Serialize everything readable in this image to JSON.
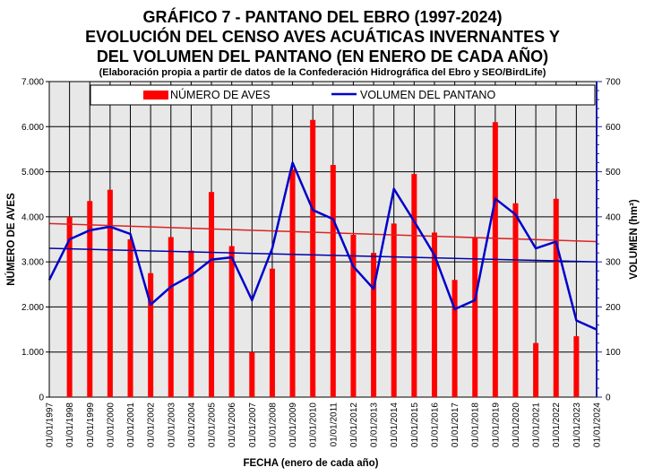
{
  "chart_data": {
    "type": "bar",
    "title_lines": [
      "GRÁFICO 7 - PANTANO DEL EBRO (1997-2024)",
      "EVOLUCIÓN DEL CENSO AVES ACUÁTICAS INVERNANTES Y",
      "DEL VOLUMEN DEL PANTANO (EN ENERO DE CADA AÑO)"
    ],
    "subtitle": "(Elaboración propia a partir de datos de la Confederación Hidrográfica del Ebro y SEO/BirdLife)",
    "xlabel": "FECHA (enero de cada año)",
    "ylabel": "NÚMERO DE AVES",
    "y2label": "VOLUMEN (hm³)",
    "ylim": [
      0,
      7000
    ],
    "y2lim": [
      0,
      700
    ],
    "y_ticks": [
      "0",
      "1.000",
      "2.000",
      "3.000",
      "4.000",
      "5.000",
      "6.000",
      "7.000"
    ],
    "y2_ticks": [
      "0",
      "100",
      "200",
      "300",
      "400",
      "500",
      "600",
      "700"
    ],
    "grid": true,
    "legend_position": "top",
    "categories": [
      "01/01/1997",
      "01/01/1998",
      "01/01/1999",
      "01/01/2000",
      "01/01/2001",
      "01/01/2002",
      "01/01/2003",
      "01/01/2004",
      "01/01/2005",
      "01/01/2006",
      "01/01/2007",
      "01/01/2008",
      "01/01/2009",
      "01/01/2010",
      "01/01/2011",
      "01/01/2012",
      "01/01/2013",
      "01/01/2014",
      "01/01/2015",
      "01/01/2016",
      "01/01/2017",
      "01/01/2018",
      "01/01/2019",
      "01/01/2020",
      "01/01/2021",
      "01/01/2022",
      "01/01/2023",
      "01/01/2024"
    ],
    "series": [
      {
        "name": "NÚMERO DE AVES",
        "type": "bar",
        "axis": "left",
        "color": "#ff0000",
        "values": [
          null,
          4000,
          4350,
          4600,
          3500,
          2750,
          3550,
          3250,
          4550,
          3350,
          1000,
          2850,
          5050,
          6150,
          5150,
          3600,
          3200,
          3850,
          4950,
          3650,
          2600,
          3550,
          6100,
          4300,
          1200,
          4400,
          1350,
          null
        ]
      },
      {
        "name": "VOLUMEN DEL PANTANO",
        "type": "line",
        "axis": "right",
        "color": "#0000cc",
        "values": [
          260,
          350,
          370,
          378,
          362,
          205,
          245,
          270,
          305,
          310,
          215,
          330,
          520,
          415,
          395,
          290,
          240,
          462,
          390,
          315,
          195,
          215,
          440,
          405,
          330,
          345,
          170,
          150
        ]
      }
    ],
    "trendlines": [
      {
        "series": "NÚMERO DE AVES",
        "color": "#dd2222",
        "start": 3850,
        "end": 3450
      },
      {
        "series": "VOLUMEN DEL PANTANO",
        "color": "#0000aa",
        "start": 330,
        "end": 300
      }
    ]
  }
}
